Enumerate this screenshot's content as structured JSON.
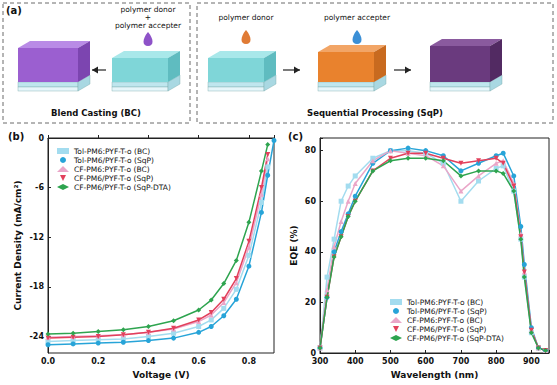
{
  "diagram": {
    "label": "(a)",
    "blend_casting": {
      "title": "Blend Casting (BC)",
      "drop_labels": [
        "polymer donor",
        "+",
        "polymer accepter"
      ]
    },
    "sequential_processing": {
      "title": "Sequential Processing (SqP)",
      "drop_labels": [
        "polymer donor",
        "polymer accepter"
      ]
    }
  },
  "chart_data": [
    {
      "type": "line",
      "title": "(b)",
      "x_label": "Voltage (V)",
      "y_label": "Current Density (mA/cm²)",
      "x": [
        0,
        0.1,
        0.2,
        0.3,
        0.4,
        0.5,
        0.6,
        0.65,
        0.7,
        0.75,
        0.8,
        0.85,
        0.875,
        0.9
      ],
      "xlim": [
        0,
        0.9
      ],
      "xticks": [
        {
          "value": 0,
          "label": "0.0"
        },
        0.2,
        0.4,
        0.6,
        0.8
      ],
      "ylim": [
        -26,
        0
      ],
      "yticks": [
        -24,
        -18,
        -12,
        -6,
        0
      ],
      "grid": false,
      "legend": "upper left",
      "series": [
        {
          "name": "Tol-PM6:PYF-T-o (BC)",
          "color": "#a3dcef",
          "marker": "square",
          "values": [
            -24.6,
            -24.5,
            -24.4,
            -24.3,
            -24.0,
            -23.6,
            -22.8,
            -22.0,
            -20.6,
            -18.3,
            -14.2,
            -7.8,
            -3.5,
            null
          ]
        },
        {
          "name": "Tol-PM6/PYF-T-o (SqP)",
          "color": "#27a4d8",
          "marker": "circle",
          "values": [
            -25.0,
            -24.9,
            -24.8,
            -24.7,
            -24.5,
            -24.2,
            -23.5,
            -22.8,
            -21.5,
            -19.5,
            -15.5,
            -9.0,
            -4.5,
            -0.3
          ]
        },
        {
          "name": "CF-PM6:PYF-T-o (BC)",
          "color": "#eaa6c8",
          "marker": "triangle",
          "values": [
            -24.1,
            -24.0,
            -23.9,
            -23.8,
            -23.5,
            -23.1,
            -22.2,
            -21.4,
            -19.9,
            -17.5,
            -13.2,
            -6.8,
            -2.5,
            null
          ]
        },
        {
          "name": "CF-PM6/PYF-T-o (SqP)",
          "color": "#e2405c",
          "marker": "triangle-down",
          "values": [
            -24.2,
            -24.1,
            -24.0,
            -23.8,
            -23.5,
            -23.0,
            -22.0,
            -21.1,
            -19.5,
            -17.0,
            -12.5,
            -6.0,
            -2.0,
            null
          ]
        },
        {
          "name": "CF-PM6/PYF-T-o (SqP-DTA)",
          "color": "#2ea44f",
          "marker": "diamond",
          "values": [
            -23.7,
            -23.6,
            -23.4,
            -23.2,
            -22.8,
            -22.1,
            -20.8,
            -19.6,
            -17.6,
            -14.8,
            -10.2,
            -4.0,
            -0.8,
            null
          ]
        }
      ]
    },
    {
      "type": "line",
      "title": "(c)",
      "x_label": "Wavelength (nm)",
      "y_label": "EQE (%)",
      "x": [
        300,
        320,
        340,
        360,
        380,
        400,
        450,
        500,
        550,
        600,
        650,
        700,
        750,
        800,
        820,
        850,
        870,
        880,
        900,
        920,
        940
      ],
      "xlim": [
        300,
        950
      ],
      "xticks": [
        300,
        400,
        500,
        600,
        700,
        800,
        900
      ],
      "ylim": [
        0,
        85
      ],
      "yticks": [
        0,
        20,
        40,
        60,
        80
      ],
      "grid": false,
      "legend": "lower center",
      "series": [
        {
          "name": "Tol-PM6:PYF-T-o (BC)",
          "color": "#a3dcef",
          "marker": "square",
          "values": [
            2,
            30,
            45,
            60,
            66,
            70,
            77,
            80,
            80,
            79,
            75,
            60,
            68,
            73,
            74,
            64,
            45,
            30,
            8,
            2,
            1
          ]
        },
        {
          "name": "Tol-PM6/PYF-T-o (SqP)",
          "color": "#27a4d8",
          "marker": "circle",
          "values": [
            2,
            22,
            40,
            48,
            55,
            62,
            75,
            80,
            81,
            80,
            78,
            72,
            75,
            78,
            79,
            70,
            50,
            35,
            10,
            2,
            1
          ]
        },
        {
          "name": "CF-PM6:PYF-T-o (BC)",
          "color": "#eaa6c8",
          "marker": "triangle",
          "values": [
            2,
            25,
            42,
            52,
            60,
            67,
            76,
            80,
            79,
            78,
            74,
            64,
            70,
            75,
            76,
            67,
            47,
            32,
            9,
            2,
            1
          ]
        },
        {
          "name": "CF-PM6/PYF-T-o (SqP)",
          "color": "#e2405c",
          "marker": "triangle-down",
          "values": [
            2,
            22,
            38,
            46,
            54,
            60,
            72,
            77,
            79,
            79,
            77,
            75,
            76,
            77,
            75,
            66,
            46,
            32,
            9,
            2,
            1
          ]
        },
        {
          "name": "CF-PM6/PYF-T-o (SqP-DTA)",
          "color": "#2ea44f",
          "marker": "diamond",
          "values": [
            2,
            22,
            38,
            46,
            54,
            60,
            72,
            76,
            77,
            77,
            76,
            70,
            72,
            72,
            71,
            64,
            45,
            30,
            8,
            2,
            1
          ]
        }
      ]
    }
  ]
}
